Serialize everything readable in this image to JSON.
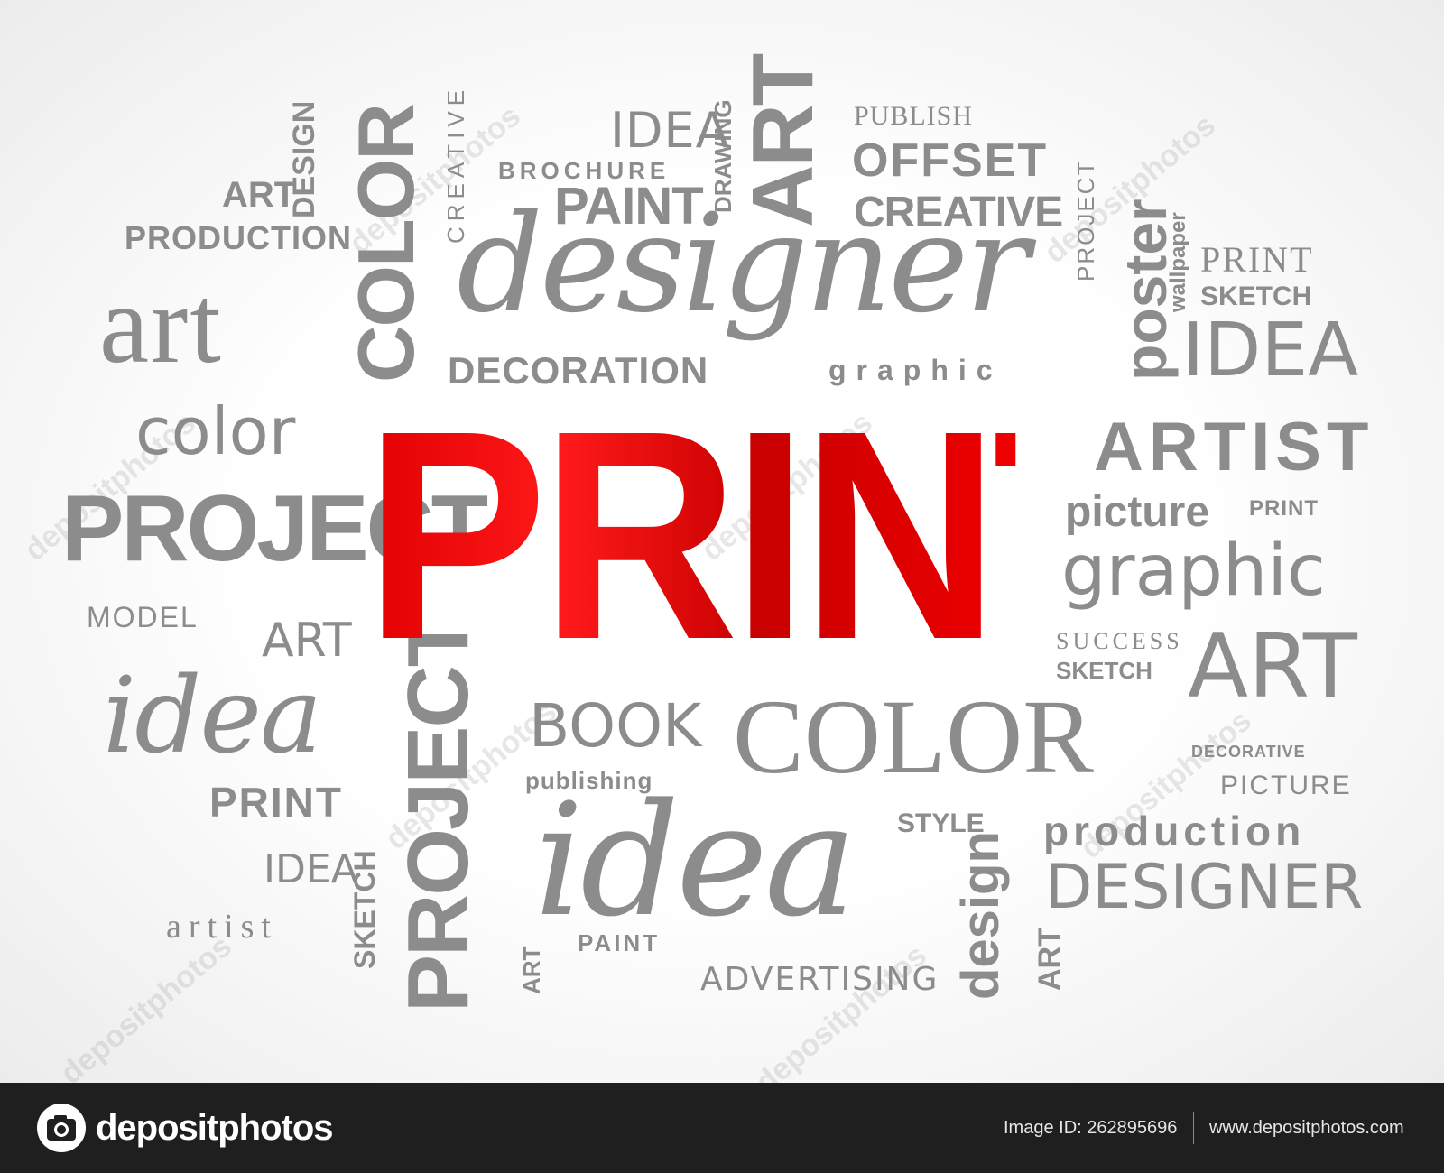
{
  "cloud": {
    "main": "PRINT",
    "words": [
      "IDEA",
      "DRAWING",
      "PUBLISH",
      "CREATIVE",
      "DESIGN",
      "COLOR",
      "ART",
      "OFFSET",
      "BROCHURE",
      "PAINT",
      "CREATIVE",
      "ART",
      "PRODUCTION",
      "PROJECT",
      "poster",
      "wallpaper",
      "PRINT",
      "designer",
      "SKETCH",
      "art",
      "DECORATION",
      "graphic",
      "IDEA",
      "color",
      "ARTIST",
      "PROJECT",
      "picture",
      "PRINT",
      "graphic",
      "MODEL",
      "ART",
      "SUCCESS",
      "ART",
      "SKETCH",
      "idea",
      "BOOK",
      "COLOR",
      "DECORATIVE",
      "publishing",
      "PICTURE",
      "PRINT",
      "PROJECT",
      "STYLE",
      "production",
      "idea",
      "IDEA",
      "SKETCH",
      "design",
      "DESIGNER",
      "artist",
      "PAINT",
      "ART",
      "ADVERTISING",
      "ART"
    ],
    "watermark": "depositphotos"
  },
  "footer": {
    "logo_text": "depositphotos",
    "image_id": "Image ID: 262895696",
    "url": "www.depositphotos.com"
  },
  "colors": {
    "accent": "#d70000",
    "word": "#8c8c8c",
    "footer_bg": "#1f1f1f"
  }
}
